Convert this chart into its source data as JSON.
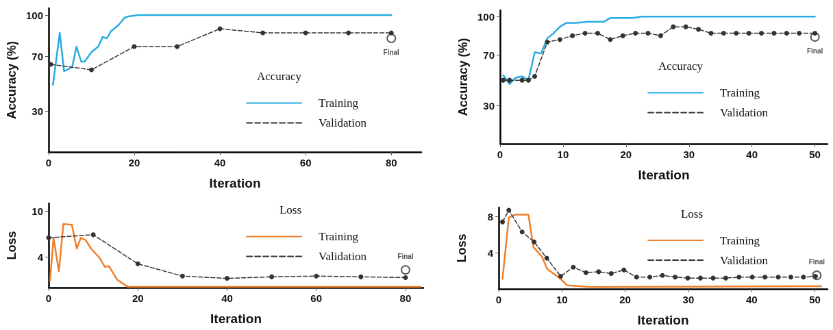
{
  "chart_data": [
    {
      "type": "line",
      "xlabel": "Iteration",
      "ylabel": "Accuracy (%)",
      "legend_title": "Accuracy",
      "legend": "bottom right",
      "grid": false,
      "xlim": [
        0,
        87
      ],
      "xticks": [
        0,
        20,
        40,
        60,
        80
      ],
      "ylim": [
        0,
        105
      ],
      "yticks": [
        30,
        70,
        100
      ],
      "series": [
        {
          "name": "Training",
          "color": "#29abe2",
          "marker": "none",
          "line_style": "solid",
          "x": [
            1,
            2.6,
            3.6,
            5.5,
            6.5,
            7.6,
            8.4,
            10,
            11.6,
            12.6,
            13.6,
            14.5,
            16.4,
            17.7,
            18.6,
            21,
            80
          ],
          "values": [
            49,
            87,
            59,
            62,
            77,
            66,
            66,
            73,
            77,
            84,
            83,
            88,
            93,
            98,
            99,
            100,
            100
          ]
        },
        {
          "name": "Validation",
          "color": "#333333",
          "marker": "circle",
          "line_style": "dashed",
          "x": [
            0.5,
            10,
            20,
            30,
            40,
            50,
            60,
            70,
            80
          ],
          "values": [
            64,
            60,
            77,
            77,
            90,
            87,
            87,
            87,
            87
          ]
        }
      ],
      "annotations": [
        {
          "text": "Final",
          "x": 80,
          "y": 83
        }
      ]
    },
    {
      "type": "line",
      "xlabel": "Iteration",
      "ylabel": "Accuracy (%)",
      "legend_title": "Accuracy",
      "legend": "bottom right",
      "grid": false,
      "xlim": [
        0,
        52
      ],
      "xticks": [
        0,
        10,
        20,
        30,
        40,
        50
      ],
      "ylim": [
        0,
        105
      ],
      "yticks": [
        30,
        70,
        100
      ],
      "series": [
        {
          "name": "Training",
          "color": "#29abe2",
          "marker": "none",
          "line_style": "solid",
          "x": [
            0.5,
            1.5,
            2.5,
            3.5,
            4.5,
            5.5,
            6.5,
            7.5,
            8.5,
            9.5,
            10.5,
            12,
            14,
            16.5,
            17.5,
            21,
            22.5,
            50
          ],
          "values": [
            54,
            47,
            52,
            53,
            50,
            72,
            71,
            83,
            87,
            92,
            95,
            95,
            96,
            96,
            99,
            99,
            100,
            100
          ]
        },
        {
          "name": "Validation",
          "color": "#333333",
          "marker": "circle",
          "line_style": "dashed",
          "x": [
            0.5,
            1.5,
            3.5,
            4.5,
            5.5,
            7.5,
            9.5,
            11.5,
            13.5,
            15.5,
            17.5,
            19.5,
            21.5,
            23.5,
            25.5,
            27.5,
            29.5,
            31.5,
            33.5,
            35.5,
            37.5,
            39.5,
            41.5,
            43.5,
            45.5,
            47.5,
            50
          ],
          "values": [
            50,
            50,
            50,
            50,
            53,
            80,
            82,
            85,
            87,
            87,
            82,
            85,
            87,
            87,
            85,
            92,
            92,
            90,
            87,
            87,
            87,
            87,
            87,
            87,
            87,
            87,
            87
          ]
        }
      ],
      "annotations": [
        {
          "text": "Final",
          "x": 50,
          "y": 84
        }
      ]
    },
    {
      "type": "line",
      "xlabel": "Iteration",
      "ylabel": "Loss",
      "legend_title": "Loss",
      "legend": "bottom right",
      "grid": false,
      "xlim": [
        0,
        84
      ],
      "xticks": [
        0,
        20,
        40,
        60,
        80
      ],
      "ylim": [
        0,
        11
      ],
      "yticks": [
        4,
        10
      ],
      "series": [
        {
          "name": "Training",
          "color": "#f07f2a",
          "marker": "none",
          "line_style": "solid",
          "x": [
            0.3,
            1.1,
            2.3,
            3.3,
            5.2,
            6.3,
            7.2,
            8.3,
            9.5,
            11.4,
            12.6,
            13.5,
            15.4,
            17.7,
            83.4
          ],
          "values": [
            0.9,
            6.5,
            2.1,
            8.3,
            8.2,
            5.1,
            6.5,
            6.2,
            5.1,
            3.9,
            2.7,
            2.8,
            1.0,
            0.1,
            0.1
          ]
        },
        {
          "name": "Validation",
          "color": "#333333",
          "marker": "circle",
          "line_style": "dashed",
          "x": [
            0,
            10,
            20,
            30,
            40,
            50,
            60,
            70,
            80
          ],
          "values": [
            6.5,
            6.9,
            3.1,
            1.5,
            1.2,
            1.4,
            1.5,
            1.4,
            1.3
          ]
        }
      ],
      "annotations": [
        {
          "text": "Final",
          "x": 80,
          "y": 2.3
        }
      ]
    },
    {
      "type": "line",
      "xlabel": "Iteration",
      "ylabel": "Loss",
      "legend_title": "Loss",
      "legend": "right",
      "grid": false,
      "xlim": [
        0,
        52
      ],
      "xticks": [
        0,
        10,
        20,
        30,
        40,
        50
      ],
      "ylim": [
        0,
        9
      ],
      "yticks": [
        4,
        8
      ],
      "series": [
        {
          "name": "Training",
          "color": "#f07f2a",
          "marker": "none",
          "line_style": "solid",
          "x": [
            0.6,
            1.6,
            2.6,
            4.7,
            5.5,
            6.8,
            7.7,
            9.8,
            10.8,
            14.5,
            51
          ],
          "values": [
            1.1,
            7.9,
            8.2,
            8.2,
            4.6,
            3.6,
            2.2,
            1.1,
            0.4,
            0.2,
            0.3
          ]
        },
        {
          "name": "Validation",
          "color": "#333333",
          "marker": "circle",
          "line_style": "dashed",
          "x": [
            0.6,
            1.6,
            3.7,
            5.6,
            7.6,
            9.8,
            11.8,
            13.8,
            15.8,
            17.8,
            19.8,
            21.8,
            23.9,
            25.9,
            27.9,
            29.9,
            31.9,
            33.9,
            35.9,
            38,
            40.1,
            42.1,
            44.2,
            46.2,
            48.2,
            50.1
          ],
          "values": [
            7.4,
            8.7,
            6.3,
            5.2,
            3.4,
            1.4,
            2.4,
            1.8,
            1.9,
            1.7,
            2.1,
            1.3,
            1.3,
            1.5,
            1.3,
            1.2,
            1.2,
            1.2,
            1.2,
            1.3,
            1.3,
            1.3,
            1.3,
            1.3,
            1.3,
            1.4
          ]
        }
      ],
      "annotations": [
        {
          "text": "Final",
          "x": 50.3,
          "y": 1.5
        }
      ]
    }
  ]
}
